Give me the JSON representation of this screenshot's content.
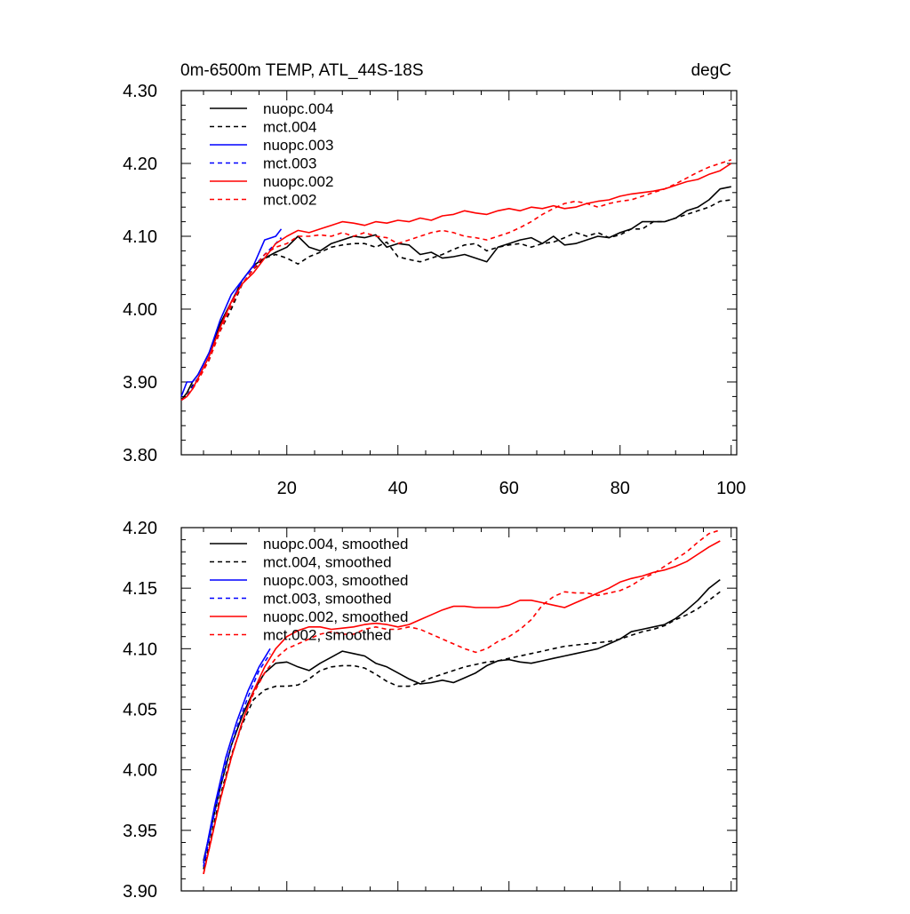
{
  "figure": {
    "title_left": "0m-6500m TEMP, ATL_44S-18S",
    "title_right": "degC"
  },
  "line_styles": [
    {
      "name": "nuopc.004",
      "color": "#000000",
      "dashed": false
    },
    {
      "name": "mct.004",
      "color": "#000000",
      "dashed": true
    },
    {
      "name": "nuopc.003",
      "color": "#0000ff",
      "dashed": false
    },
    {
      "name": "mct.003",
      "color": "#0000ff",
      "dashed": true
    },
    {
      "name": "nuopc.002",
      "color": "#ff0000",
      "dashed": false
    },
    {
      "name": "mct.002",
      "color": "#ff0000",
      "dashed": true
    }
  ],
  "chart_data": [
    {
      "type": "line",
      "title": "0m-6500m TEMP, ATL_44S-18S",
      "units": "degC",
      "xlabel": "",
      "ylabel": "",
      "xlim": [
        1,
        101
      ],
      "ylim": [
        3.8,
        4.3
      ],
      "xticks": [
        20,
        40,
        60,
        80,
        100
      ],
      "xtick_labels": [
        "20",
        "40",
        "60",
        "80",
        "100"
      ],
      "yticks": [
        3.8,
        3.9,
        4.0,
        4.1,
        4.2,
        4.3
      ],
      "ytick_labels": [
        "3.80",
        "3.90",
        "4.00",
        "4.10",
        "4.20",
        "4.30"
      ],
      "legend_position": "top-left",
      "series": [
        {
          "name": "nuopc.004",
          "color": "#000000",
          "dashed": false,
          "x": [
            1,
            2,
            3,
            4,
            6,
            8,
            10,
            12,
            14,
            16,
            18,
            20,
            22,
            24,
            26,
            28,
            30,
            32,
            34,
            36,
            38,
            40,
            42,
            44,
            46,
            48,
            50,
            52,
            54,
            56,
            58,
            60,
            62,
            64,
            66,
            68,
            70,
            72,
            74,
            76,
            78,
            80,
            82,
            84,
            86,
            88,
            90,
            92,
            94,
            96,
            98,
            100
          ],
          "y": [
            3.875,
            3.885,
            3.9,
            3.91,
            3.94,
            3.98,
            4.01,
            4.04,
            4.06,
            4.07,
            4.078,
            4.085,
            4.1,
            4.085,
            4.08,
            4.09,
            4.095,
            4.1,
            4.098,
            4.102,
            4.085,
            4.09,
            4.088,
            4.075,
            4.078,
            4.07,
            4.072,
            4.075,
            4.07,
            4.065,
            4.085,
            4.09,
            4.095,
            4.098,
            4.09,
            4.1,
            4.088,
            4.09,
            4.095,
            4.1,
            4.098,
            4.105,
            4.11,
            4.12,
            4.12,
            4.12,
            4.125,
            4.135,
            4.14,
            4.15,
            4.165,
            4.168
          ]
        },
        {
          "name": "mct.004",
          "color": "#000000",
          "dashed": true,
          "x": [
            1,
            2,
            3,
            4,
            6,
            8,
            10,
            12,
            14,
            16,
            18,
            20,
            22,
            24,
            26,
            28,
            30,
            32,
            34,
            36,
            38,
            40,
            42,
            44,
            46,
            48,
            50,
            52,
            54,
            56,
            58,
            60,
            62,
            64,
            66,
            68,
            70,
            72,
            74,
            76,
            78,
            80,
            82,
            84,
            86,
            88,
            90,
            92,
            94,
            96,
            98,
            100
          ],
          "y": [
            3.875,
            3.88,
            3.895,
            3.905,
            3.93,
            3.97,
            4.0,
            4.035,
            4.055,
            4.07,
            4.075,
            4.07,
            4.062,
            4.072,
            4.078,
            4.085,
            4.088,
            4.09,
            4.09,
            4.085,
            4.092,
            4.072,
            4.068,
            4.065,
            4.07,
            4.075,
            4.082,
            4.088,
            4.09,
            4.08,
            4.085,
            4.088,
            4.09,
            4.085,
            4.09,
            4.092,
            4.098,
            4.105,
            4.1,
            4.105,
            4.098,
            4.102,
            4.11,
            4.11,
            4.12,
            4.12,
            4.125,
            4.13,
            4.135,
            4.14,
            4.148,
            4.15
          ]
        },
        {
          "name": "nuopc.003",
          "color": "#0000ff",
          "dashed": false,
          "x": [
            1,
            2,
            3,
            4,
            6,
            8,
            10,
            12,
            14,
            16,
            18,
            19
          ],
          "y": [
            3.88,
            3.9,
            3.9,
            3.91,
            3.94,
            3.985,
            4.02,
            4.04,
            4.06,
            4.095,
            4.1,
            4.11
          ]
        },
        {
          "name": "mct.003",
          "color": "#0000ff",
          "dashed": true,
          "x": [
            1,
            2,
            3,
            4,
            6,
            8,
            10,
            12,
            14,
            16,
            18,
            19
          ],
          "y": [
            3.875,
            3.88,
            3.893,
            3.905,
            3.935,
            3.975,
            4.01,
            4.04,
            4.058,
            4.075,
            4.09,
            4.098
          ]
        },
        {
          "name": "nuopc.002",
          "color": "#ff0000",
          "dashed": false,
          "x": [
            1,
            2,
            3,
            4,
            6,
            8,
            10,
            12,
            14,
            16,
            18,
            20,
            22,
            24,
            26,
            28,
            30,
            32,
            34,
            36,
            38,
            40,
            42,
            44,
            46,
            48,
            50,
            52,
            54,
            56,
            58,
            60,
            62,
            64,
            66,
            68,
            70,
            72,
            74,
            76,
            78,
            80,
            82,
            84,
            86,
            88,
            90,
            92,
            94,
            96,
            98,
            100
          ],
          "y": [
            3.875,
            3.88,
            3.89,
            3.905,
            3.935,
            3.975,
            4.01,
            4.035,
            4.05,
            4.07,
            4.09,
            4.1,
            4.108,
            4.105,
            4.11,
            4.115,
            4.12,
            4.118,
            4.115,
            4.12,
            4.118,
            4.122,
            4.12,
            4.125,
            4.122,
            4.128,
            4.13,
            4.135,
            4.132,
            4.13,
            4.135,
            4.138,
            4.135,
            4.14,
            4.138,
            4.142,
            4.138,
            4.14,
            4.145,
            4.148,
            4.15,
            4.155,
            4.158,
            4.16,
            4.162,
            4.165,
            4.17,
            4.175,
            4.178,
            4.185,
            4.19,
            4.2
          ]
        },
        {
          "name": "mct.002",
          "color": "#ff0000",
          "dashed": true,
          "x": [
            1,
            2,
            3,
            4,
            6,
            8,
            10,
            12,
            14,
            16,
            18,
            20,
            22,
            24,
            26,
            28,
            30,
            32,
            34,
            36,
            38,
            40,
            42,
            44,
            46,
            48,
            50,
            52,
            54,
            56,
            58,
            60,
            62,
            64,
            66,
            68,
            70,
            72,
            74,
            76,
            78,
            80,
            82,
            84,
            86,
            88,
            90,
            92,
            94,
            96,
            98,
            100
          ],
          "y": [
            3.875,
            3.88,
            3.89,
            3.902,
            3.93,
            3.97,
            4.005,
            4.035,
            4.055,
            4.075,
            4.085,
            4.09,
            4.1,
            4.1,
            4.102,
            4.1,
            4.105,
            4.1,
            4.105,
            4.1,
            4.098,
            4.09,
            4.095,
            4.1,
            4.105,
            4.108,
            4.105,
            4.1,
            4.098,
            4.095,
            4.1,
            4.105,
            4.112,
            4.12,
            4.13,
            4.138,
            4.145,
            4.148,
            4.145,
            4.14,
            4.145,
            4.148,
            4.15,
            4.155,
            4.16,
            4.165,
            4.172,
            4.18,
            4.188,
            4.195,
            4.2,
            4.205
          ]
        }
      ]
    },
    {
      "type": "line",
      "title": "",
      "xlabel": "",
      "ylabel": "",
      "xlim": [
        1,
        101
      ],
      "ylim": [
        3.9,
        4.2
      ],
      "xticks": [
        20,
        40,
        60,
        80,
        100
      ],
      "xtick_labels": [],
      "yticks": [
        3.9,
        3.95,
        4.0,
        4.05,
        4.1,
        4.15,
        4.2
      ],
      "ytick_labels": [
        "3.90",
        "3.95",
        "4.00",
        "4.05",
        "4.10",
        "4.15",
        "4.20"
      ],
      "legend_position": "top-left",
      "series": [
        {
          "name": "nuopc.004, smoothed",
          "color": "#000000",
          "dashed": false,
          "x": [
            5,
            8,
            10,
            12,
            14,
            16,
            18,
            20,
            22,
            24,
            26,
            28,
            30,
            32,
            34,
            36,
            38,
            40,
            42,
            44,
            46,
            48,
            50,
            52,
            54,
            56,
            58,
            60,
            62,
            64,
            66,
            68,
            70,
            72,
            74,
            76,
            78,
            80,
            82,
            84,
            86,
            88,
            90,
            92,
            94,
            96,
            98
          ],
          "y": [
            3.925,
            3.985,
            4.02,
            4.045,
            4.065,
            4.08,
            4.088,
            4.089,
            4.085,
            4.082,
            4.088,
            4.093,
            4.098,
            4.096,
            4.094,
            4.088,
            4.085,
            4.08,
            4.075,
            4.071,
            4.072,
            4.074,
            4.072,
            4.076,
            4.08,
            4.086,
            4.09,
            4.091,
            4.089,
            4.088,
            4.09,
            4.092,
            4.094,
            4.096,
            4.098,
            4.1,
            4.104,
            4.108,
            4.114,
            4.116,
            4.118,
            4.12,
            4.125,
            4.132,
            4.14,
            4.15,
            4.157
          ]
        },
        {
          "name": "mct.004, smoothed",
          "color": "#000000",
          "dashed": true,
          "x": [
            5,
            8,
            10,
            12,
            14,
            16,
            18,
            20,
            22,
            24,
            26,
            28,
            30,
            32,
            34,
            36,
            38,
            40,
            42,
            44,
            46,
            48,
            50,
            52,
            54,
            56,
            58,
            60,
            62,
            64,
            66,
            68,
            70,
            72,
            74,
            76,
            78,
            80,
            82,
            84,
            86,
            88,
            90,
            92,
            94,
            96,
            98
          ],
          "y": [
            3.918,
            3.978,
            4.012,
            4.038,
            4.058,
            4.066,
            4.069,
            4.069,
            4.07,
            4.075,
            4.082,
            4.085,
            4.086,
            4.086,
            4.084,
            4.079,
            4.073,
            4.069,
            4.069,
            4.072,
            4.076,
            4.079,
            4.082,
            4.085,
            4.087,
            4.089,
            4.09,
            4.092,
            4.094,
            4.096,
            4.098,
            4.1,
            4.102,
            4.103,
            4.104,
            4.105,
            4.106,
            4.108,
            4.111,
            4.114,
            4.116,
            4.119,
            4.124,
            4.128,
            4.133,
            4.14,
            4.147
          ]
        },
        {
          "name": "nuopc.003, smoothed",
          "color": "#0000ff",
          "dashed": false,
          "x": [
            5,
            7,
            9,
            11,
            13,
            15,
            17
          ],
          "y": [
            3.923,
            3.97,
            4.01,
            4.04,
            4.065,
            4.085,
            4.1
          ]
        },
        {
          "name": "mct.003, smoothed",
          "color": "#0000ff",
          "dashed": true,
          "x": [
            5,
            7,
            9,
            11,
            13,
            15,
            17
          ],
          "y": [
            3.92,
            3.965,
            4.005,
            4.035,
            4.06,
            4.082,
            4.096
          ]
        },
        {
          "name": "nuopc.002, smoothed",
          "color": "#ff0000",
          "dashed": false,
          "x": [
            5,
            8,
            10,
            12,
            14,
            16,
            18,
            20,
            22,
            24,
            26,
            28,
            30,
            32,
            34,
            36,
            38,
            40,
            42,
            44,
            46,
            48,
            50,
            52,
            54,
            56,
            58,
            60,
            62,
            64,
            66,
            68,
            70,
            72,
            74,
            76,
            78,
            80,
            82,
            84,
            86,
            88,
            90,
            92,
            94,
            96,
            98
          ],
          "y": [
            3.914,
            3.975,
            4.01,
            4.04,
            4.065,
            4.085,
            4.1,
            4.11,
            4.115,
            4.118,
            4.118,
            4.116,
            4.117,
            4.118,
            4.12,
            4.121,
            4.12,
            4.118,
            4.12,
            4.124,
            4.128,
            4.132,
            4.135,
            4.135,
            4.134,
            4.134,
            4.134,
            4.136,
            4.14,
            4.14,
            4.138,
            4.136,
            4.134,
            4.138,
            4.142,
            4.146,
            4.15,
            4.155,
            4.158,
            4.16,
            4.163,
            4.165,
            4.168,
            4.172,
            4.178,
            4.184,
            4.189
          ]
        },
        {
          "name": "mct.002, smoothed",
          "color": "#ff0000",
          "dashed": true,
          "x": [
            5,
            8,
            10,
            12,
            14,
            16,
            18,
            20,
            22,
            24,
            26,
            28,
            30,
            32,
            34,
            36,
            38,
            40,
            42,
            44,
            46,
            48,
            50,
            52,
            54,
            56,
            58,
            60,
            62,
            64,
            66,
            68,
            70,
            72,
            74,
            76,
            78,
            80,
            82,
            84,
            86,
            88,
            90,
            92,
            94,
            96,
            98
          ],
          "y": [
            3.914,
            3.975,
            4.01,
            4.04,
            4.063,
            4.08,
            4.092,
            4.1,
            4.104,
            4.108,
            4.112,
            4.114,
            4.112,
            4.112,
            4.116,
            4.118,
            4.116,
            4.116,
            4.118,
            4.116,
            4.112,
            4.108,
            4.104,
            4.1,
            4.097,
            4.1,
            4.106,
            4.11,
            4.116,
            4.124,
            4.136,
            4.143,
            4.147,
            4.146,
            4.146,
            4.144,
            4.146,
            4.148,
            4.152,
            4.158,
            4.162,
            4.168,
            4.174,
            4.18,
            4.188,
            4.195,
            4.198
          ]
        }
      ]
    }
  ]
}
